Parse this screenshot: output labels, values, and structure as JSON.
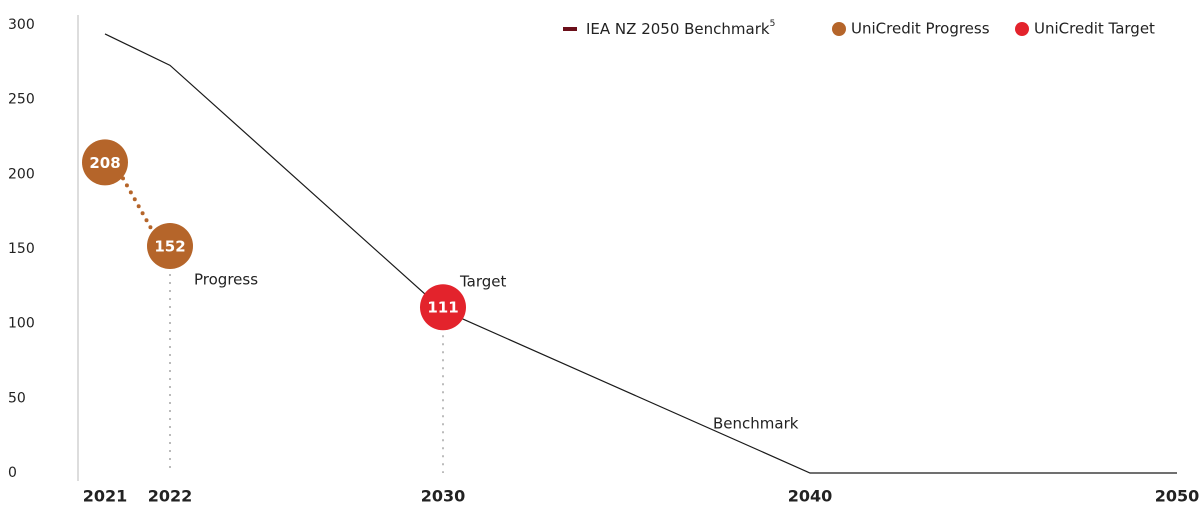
{
  "chart_data": {
    "type": "line",
    "x": [
      2021,
      2022,
      2030,
      2040,
      2050
    ],
    "xticks": [
      2021,
      2022,
      2030,
      2040,
      2050
    ],
    "ylim": [
      0,
      300
    ],
    "yticks": [
      0,
      50,
      100,
      150,
      200,
      250,
      300
    ],
    "legend": "top-right",
    "legend_footnote": "5",
    "series": [
      {
        "name": "IEA NZ 2050 Benchmark",
        "color": "#6b0f1a",
        "line_color": "#1a1a1a",
        "x": [
          2021,
          2022,
          2030,
          2040,
          2050
        ],
        "values": [
          294,
          273,
          109,
          0,
          0
        ]
      },
      {
        "name": "UniCredit Progress",
        "color": "#b5652a",
        "x": [
          2021,
          2022
        ],
        "values": [
          208,
          152
        ]
      },
      {
        "name": "UniCredit Target",
        "color": "#e3232c",
        "x": [
          2030
        ],
        "values": [
          111
        ]
      }
    ],
    "annotations": [
      "Progress",
      "Target",
      "Benchmark"
    ]
  }
}
